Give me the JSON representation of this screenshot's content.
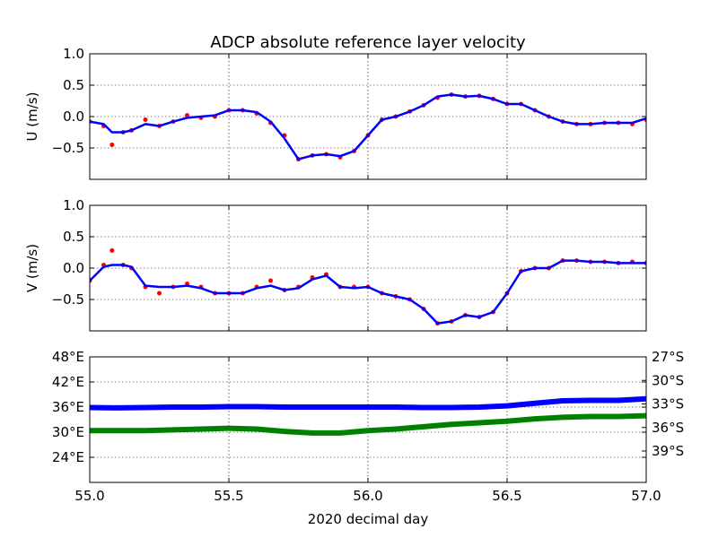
{
  "chart_data": {
    "type": "line",
    "title": "ADCP absolute reference layer velocity",
    "xlabel": "2020 decimal day",
    "xlim": [
      55.0,
      57.0
    ],
    "xticks": [
      "55.0",
      "55.5",
      "56.0",
      "56.5",
      "57.0"
    ],
    "grid": true,
    "panels": [
      {
        "ylabel": "U (m/s)",
        "ylim": [
          -1.0,
          1.0
        ],
        "yticks": [
          "1.0",
          "0.5",
          "0.0",
          "−0.5"
        ],
        "series": [
          {
            "kind": "scatter",
            "color": "#ff0000",
            "x": [
              55.0,
              55.05,
              55.08,
              55.12,
              55.15,
              55.2,
              55.25,
              55.3,
              55.35,
              55.4,
              55.45,
              55.5,
              55.55,
              55.6,
              55.65,
              55.7,
              55.75,
              55.8,
              55.85,
              55.9,
              55.95,
              56.0,
              56.05,
              56.1,
              56.15,
              56.2,
              56.25,
              56.3,
              56.35,
              56.4,
              56.45,
              56.5,
              56.55,
              56.6,
              56.65,
              56.7,
              56.75,
              56.8,
              56.85,
              56.9,
              56.95,
              57.0
            ],
            "y": [
              -0.08,
              -0.15,
              -0.45,
              -0.25,
              -0.22,
              -0.05,
              -0.15,
              -0.08,
              0.02,
              -0.02,
              0.0,
              0.1,
              0.1,
              0.05,
              -0.1,
              -0.3,
              -0.68,
              -0.62,
              -0.6,
              -0.65,
              -0.55,
              -0.3,
              -0.05,
              0.0,
              0.08,
              0.18,
              0.3,
              0.35,
              0.32,
              0.33,
              0.28,
              0.2,
              0.2,
              0.1,
              0.0,
              -0.08,
              -0.12,
              -0.12,
              -0.1,
              -0.1,
              -0.12,
              -0.05
            ]
          },
          {
            "kind": "line",
            "color": "#0000ff",
            "x": [
              55.0,
              55.05,
              55.08,
              55.12,
              55.15,
              55.2,
              55.25,
              55.3,
              55.35,
              55.4,
              55.45,
              55.5,
              55.55,
              55.6,
              55.65,
              55.7,
              55.75,
              55.8,
              55.85,
              55.9,
              55.95,
              56.0,
              56.05,
              56.1,
              56.15,
              56.2,
              56.25,
              56.3,
              56.35,
              56.4,
              56.45,
              56.5,
              56.55,
              56.6,
              56.65,
              56.7,
              56.75,
              56.8,
              56.85,
              56.9,
              56.95,
              57.0
            ],
            "y": [
              -0.08,
              -0.12,
              -0.25,
              -0.25,
              -0.22,
              -0.12,
              -0.15,
              -0.08,
              -0.02,
              0.0,
              0.02,
              0.1,
              0.1,
              0.07,
              -0.08,
              -0.35,
              -0.68,
              -0.62,
              -0.6,
              -0.63,
              -0.55,
              -0.3,
              -0.05,
              0.0,
              0.08,
              0.18,
              0.32,
              0.35,
              0.32,
              0.33,
              0.28,
              0.2,
              0.2,
              0.1,
              0.0,
              -0.08,
              -0.12,
              -0.12,
              -0.1,
              -0.1,
              -0.1,
              -0.03
            ]
          }
        ]
      },
      {
        "ylabel": "V (m/s)",
        "ylim": [
          -1.0,
          1.0
        ],
        "yticks": [
          "1.0",
          "0.5",
          "0.0",
          "−0.5"
        ],
        "series": [
          {
            "kind": "scatter",
            "color": "#ff0000",
            "x": [
              55.0,
              55.05,
              55.08,
              55.12,
              55.15,
              55.2,
              55.25,
              55.3,
              55.35,
              55.4,
              55.45,
              55.5,
              55.55,
              55.6,
              55.65,
              55.7,
              55.75,
              55.8,
              55.85,
              55.9,
              55.95,
              56.0,
              56.05,
              56.1,
              56.15,
              56.2,
              56.25,
              56.3,
              56.35,
              56.4,
              56.45,
              56.5,
              56.55,
              56.6,
              56.65,
              56.7,
              56.75,
              56.8,
              56.85,
              56.9,
              56.95,
              57.0
            ],
            "y": [
              -0.2,
              0.05,
              0.28,
              0.05,
              0.0,
              -0.3,
              -0.4,
              -0.3,
              -0.25,
              -0.3,
              -0.4,
              -0.4,
              -0.4,
              -0.3,
              -0.2,
              -0.35,
              -0.3,
              -0.15,
              -0.1,
              -0.3,
              -0.3,
              -0.3,
              -0.4,
              -0.45,
              -0.5,
              -0.65,
              -0.88,
              -0.85,
              -0.75,
              -0.78,
              -0.7,
              -0.4,
              -0.05,
              0.0,
              0.0,
              0.12,
              0.12,
              0.1,
              0.1,
              0.08,
              0.1,
              0.08
            ]
          },
          {
            "kind": "line",
            "color": "#0000ff",
            "x": [
              55.0,
              55.05,
              55.08,
              55.12,
              55.15,
              55.2,
              55.25,
              55.3,
              55.35,
              55.4,
              55.45,
              55.5,
              55.55,
              55.6,
              55.65,
              55.7,
              55.75,
              55.8,
              55.85,
              55.9,
              55.95,
              56.0,
              56.05,
              56.1,
              56.15,
              56.2,
              56.25,
              56.3,
              56.35,
              56.4,
              56.45,
              56.5,
              56.55,
              56.6,
              56.65,
              56.7,
              56.75,
              56.8,
              56.85,
              56.9,
              56.95,
              57.0
            ],
            "y": [
              -0.2,
              0.02,
              0.05,
              0.05,
              0.02,
              -0.28,
              -0.3,
              -0.3,
              -0.28,
              -0.32,
              -0.4,
              -0.4,
              -0.4,
              -0.32,
              -0.28,
              -0.35,
              -0.32,
              -0.18,
              -0.12,
              -0.3,
              -0.32,
              -0.3,
              -0.4,
              -0.45,
              -0.5,
              -0.65,
              -0.88,
              -0.85,
              -0.75,
              -0.78,
              -0.7,
              -0.4,
              -0.05,
              0.0,
              0.0,
              0.12,
              0.12,
              0.1,
              0.1,
              0.08,
              0.08,
              0.08
            ]
          }
        ]
      },
      {
        "ylim": [
          18,
          48
        ],
        "yticks": [
          "48°E",
          "42°E",
          "36°E",
          "30°E",
          "24°E"
        ],
        "yticks_color": "#0000ff",
        "y2lim": [
          -43,
          -27
        ],
        "y2ticks": [
          "27°S",
          "30°S",
          "33°S",
          "36°S",
          "39°S"
        ],
        "y2ticks_color": "#008000",
        "series": [
          {
            "kind": "line",
            "axis": "left",
            "color": "#0000ff",
            "width": 6,
            "x": [
              55.0,
              55.1,
              55.2,
              55.3,
              55.4,
              55.5,
              55.6,
              55.7,
              55.8,
              55.9,
              56.0,
              56.1,
              56.2,
              56.3,
              56.4,
              56.5,
              56.6,
              56.7,
              56.8,
              56.9,
              57.0
            ],
            "y": [
              35.9,
              35.8,
              35.9,
              36.0,
              36.0,
              36.1,
              36.1,
              36.0,
              36.0,
              36.0,
              36.0,
              36.0,
              35.9,
              35.9,
              36.0,
              36.3,
              36.9,
              37.5,
              37.6,
              37.6,
              38.0
            ]
          },
          {
            "kind": "line",
            "axis": "right",
            "color": "#008000",
            "width": 6,
            "x": [
              55.0,
              55.1,
              55.2,
              55.3,
              55.4,
              55.5,
              55.6,
              55.7,
              55.8,
              55.9,
              56.0,
              56.1,
              56.2,
              56.3,
              56.4,
              56.5,
              56.6,
              56.7,
              56.8,
              56.9,
              57.0
            ],
            "y": [
              -36.4,
              -36.4,
              -36.4,
              -36.3,
              -36.2,
              -36.1,
              -36.2,
              -36.5,
              -36.7,
              -36.7,
              -36.4,
              -36.2,
              -35.9,
              -35.6,
              -35.4,
              -35.2,
              -34.9,
              -34.7,
              -34.6,
              -34.6,
              -34.5
            ]
          }
        ]
      }
    ]
  }
}
